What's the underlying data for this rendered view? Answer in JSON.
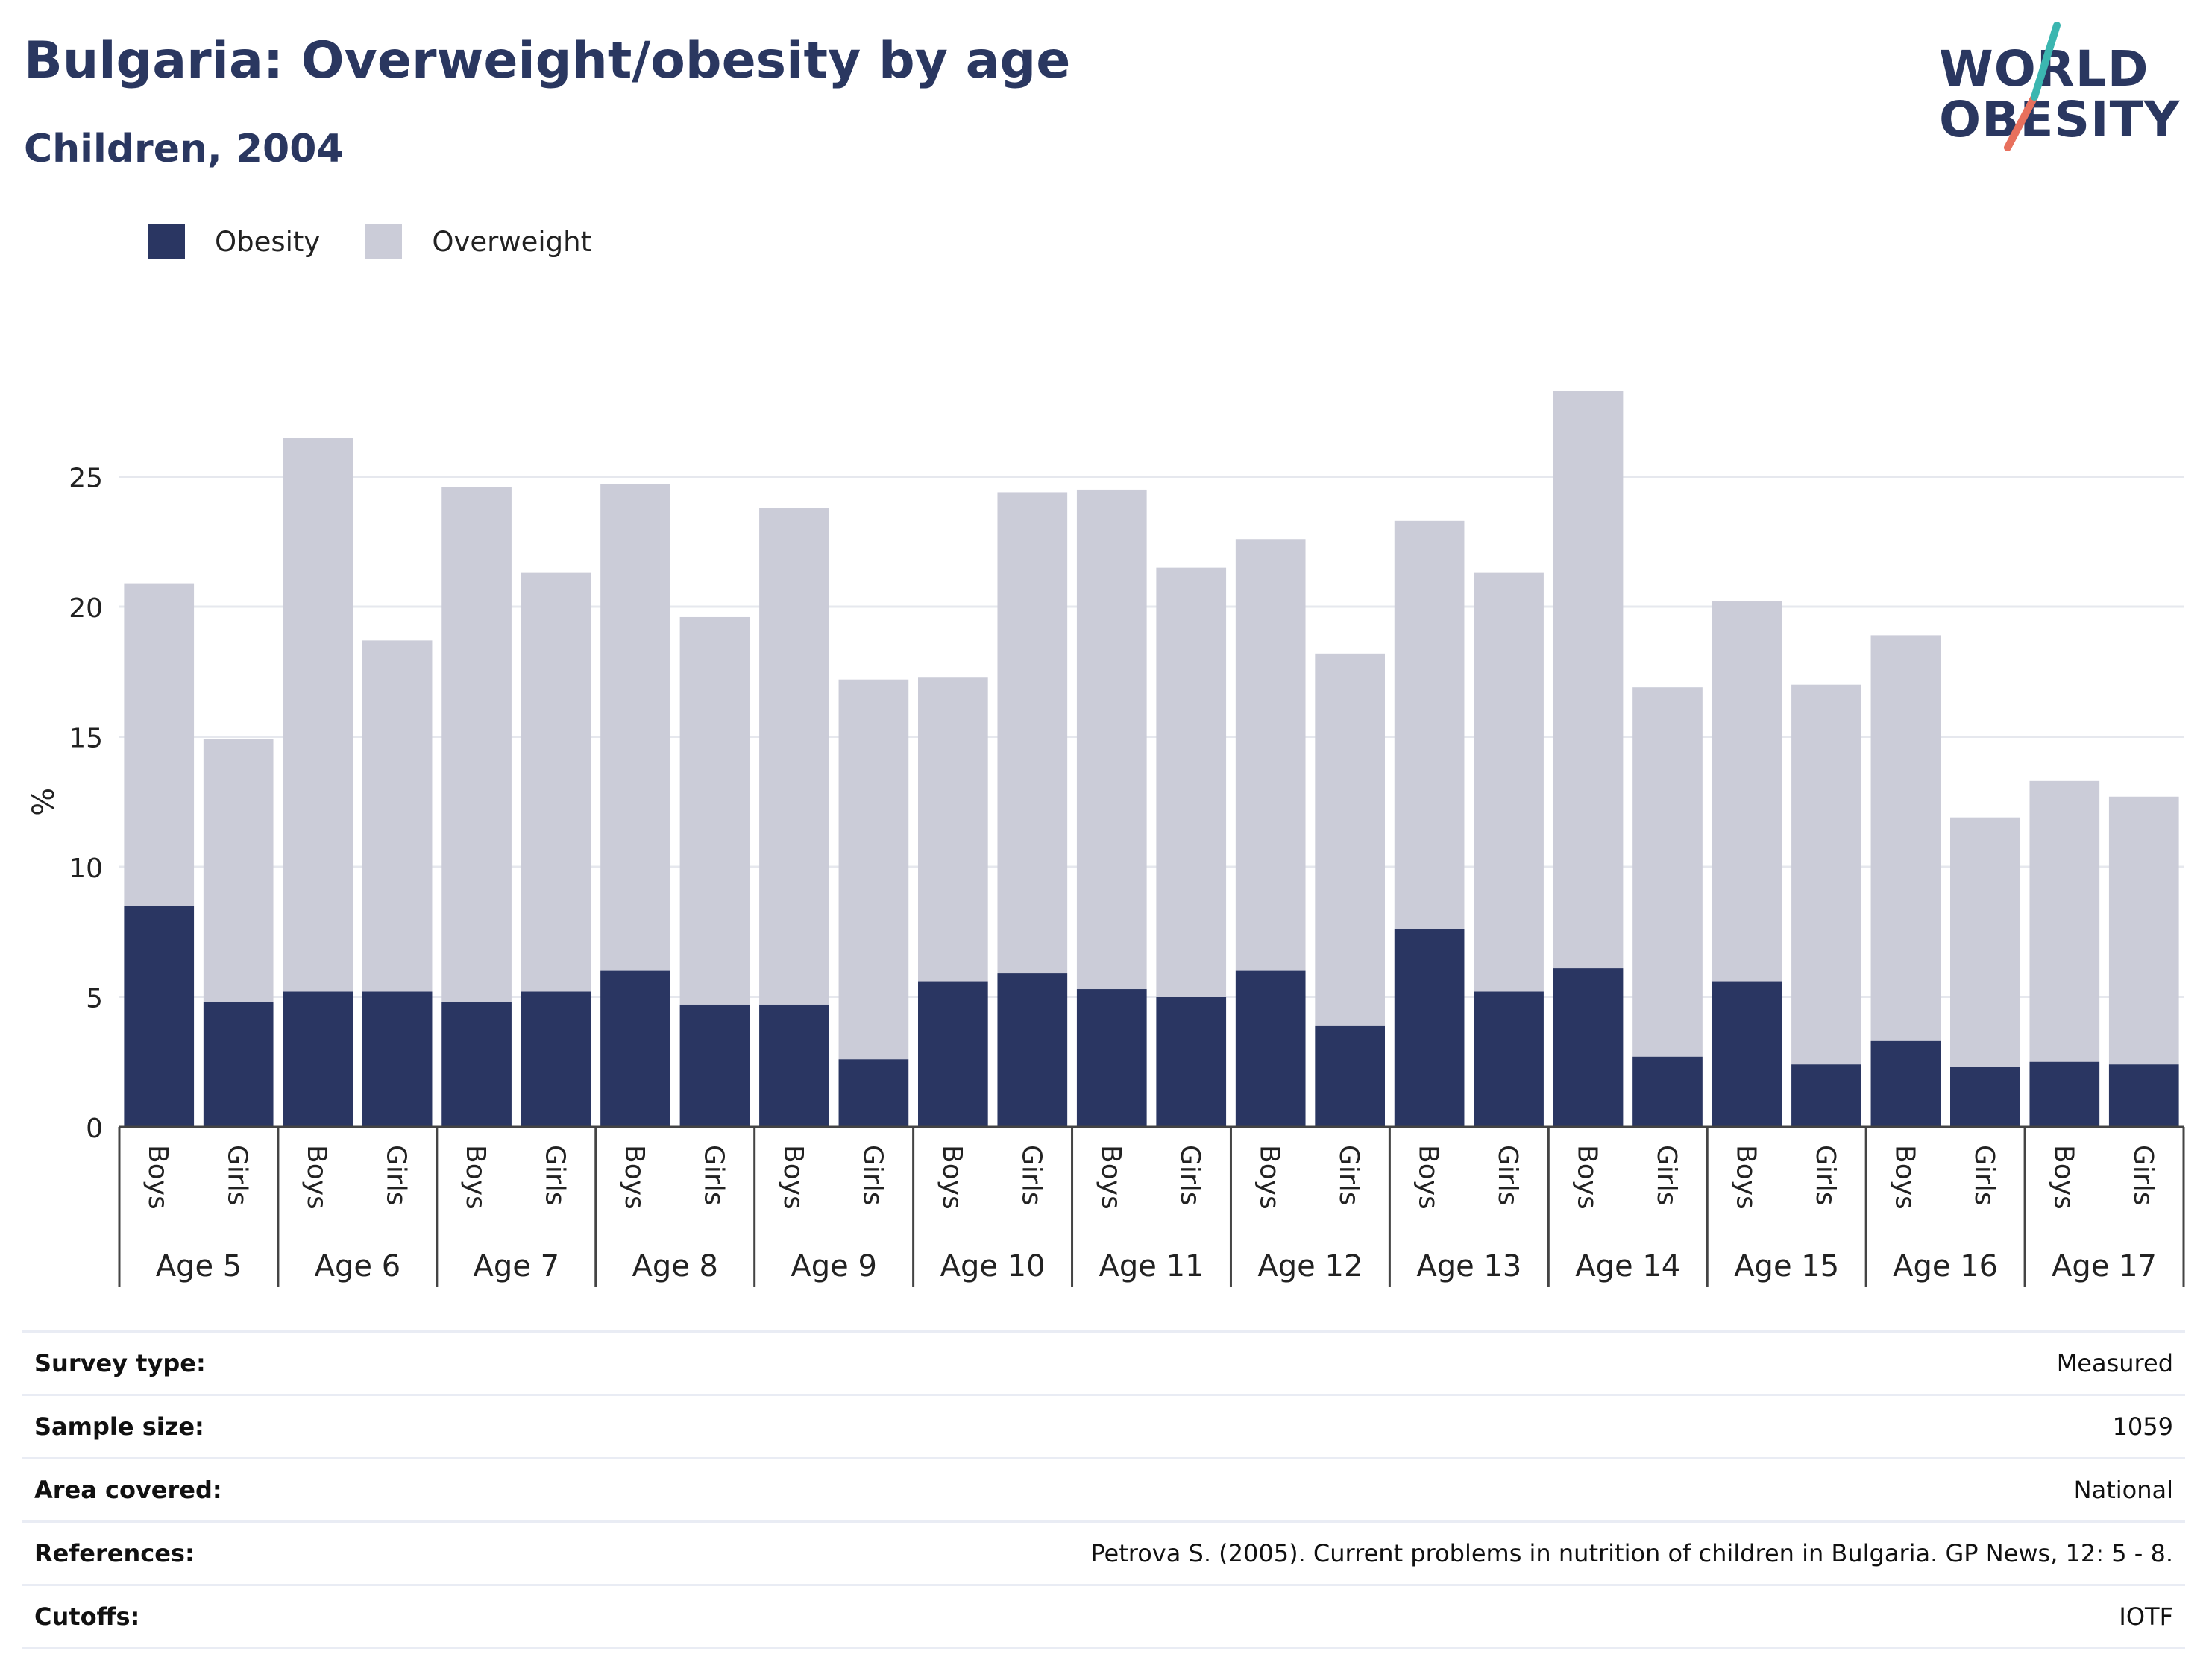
{
  "header": {
    "title": "Bulgaria: Overweight/obesity by age",
    "subtitle": "Children, 2004"
  },
  "logo": {
    "line1": "WORLD",
    "line2": "OBESITY",
    "accent_teal": "#3bb6b0",
    "accent_coral": "#e8705d"
  },
  "colors": {
    "obesity": "#2a3662",
    "overweight": "#cbccd8",
    "grid": "#e6e8ee",
    "text": "#2a3760"
  },
  "chart_data": {
    "type": "bar",
    "stacked": true,
    "ylabel": "%",
    "ylim": [
      0,
      30
    ],
    "yticks": [
      0,
      5,
      10,
      15,
      20,
      25
    ],
    "grid": true,
    "legend_position": "top-left",
    "groups": [
      "Age 5",
      "Age 6",
      "Age 7",
      "Age 8",
      "Age 9",
      "Age 10",
      "Age 11",
      "Age 12",
      "Age 13",
      "Age 14",
      "Age 15",
      "Age 16",
      "Age 17"
    ],
    "subcategories": [
      "Boys",
      "Girls"
    ],
    "series": [
      {
        "name": "Obesity",
        "values": [
          8.5,
          4.8,
          5.2,
          5.2,
          4.8,
          5.2,
          6.0,
          4.7,
          4.7,
          2.6,
          5.6,
          5.9,
          5.3,
          5.0,
          6.0,
          3.9,
          7.6,
          5.2,
          6.1,
          2.7,
          5.6,
          2.4,
          3.3,
          2.3,
          2.5,
          2.4
        ]
      },
      {
        "name": "Overweight",
        "values": [
          12.4,
          10.1,
          21.3,
          13.5,
          19.8,
          16.1,
          18.7,
          14.9,
          19.1,
          14.6,
          11.7,
          18.5,
          19.2,
          16.5,
          16.6,
          14.3,
          15.7,
          16.1,
          22.2,
          14.2,
          14.6,
          14.6,
          15.6,
          9.6,
          10.8,
          10.3
        ]
      }
    ]
  },
  "info": [
    {
      "label": "Survey type:",
      "value": "Measured"
    },
    {
      "label": "Sample size:",
      "value": "1059"
    },
    {
      "label": "Area covered:",
      "value": "National"
    },
    {
      "label": "References:",
      "value": "Petrova S. (2005). Current problems in nutrition of children in Bulgaria. GP News, 12: 5 - 8."
    },
    {
      "label": "Cutoffs:",
      "value": "IOTF"
    }
  ]
}
